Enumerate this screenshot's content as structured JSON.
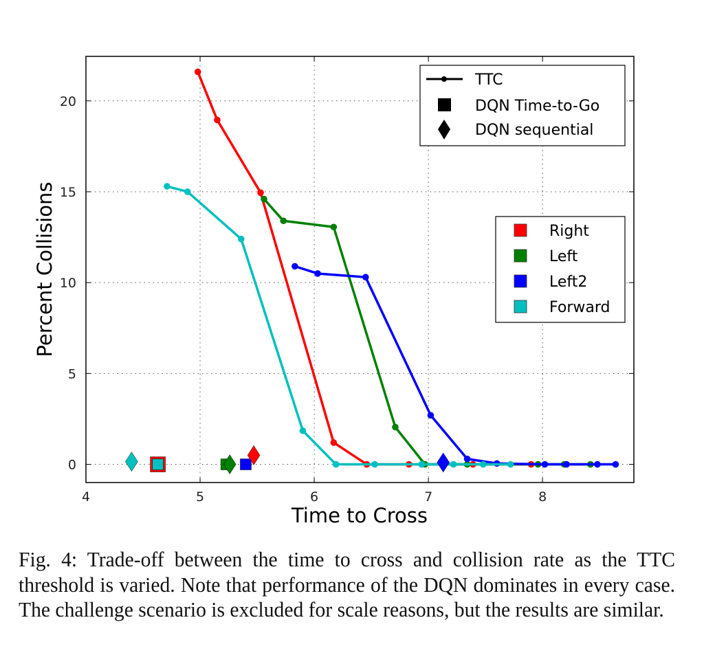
{
  "chart_data": {
    "type": "line",
    "title": "",
    "xlabel": "Time to Cross",
    "ylabel": "Percent Collisions",
    "xlim": [
      4,
      8.8
    ],
    "ylim": [
      -1,
      22.45
    ],
    "xticks": [
      4,
      5,
      6,
      7,
      8
    ],
    "yticks": [
      0,
      5,
      10,
      15,
      20
    ],
    "grid": true,
    "series": [
      {
        "name": "Right",
        "color": "#ff0000",
        "x": [
          4.98,
          5.15,
          5.53,
          6.17,
          6.46,
          6.83,
          7.39,
          7.9
        ],
        "y": [
          21.6,
          18.95,
          14.95,
          1.2,
          0,
          0,
          0,
          0
        ]
      },
      {
        "name": "Left",
        "color": "#008000",
        "x": [
          5.56,
          5.73,
          6.17,
          6.71,
          6.97,
          7.34,
          7.96,
          8.19,
          8.42
        ],
        "y": [
          14.6,
          13.4,
          13.06,
          2.05,
          0,
          0,
          0,
          0,
          0
        ]
      },
      {
        "name": "Left2",
        "color": "#0000ff",
        "x": [
          5.83,
          6.03,
          6.45,
          7.02,
          7.34,
          7.6,
          8.02,
          8.21,
          8.48,
          8.64
        ],
        "y": [
          10.9,
          10.5,
          10.3,
          2.7,
          0.3,
          0.05,
          0,
          0,
          0,
          0
        ]
      },
      {
        "name": "Forward",
        "color": "#00bfbf",
        "x": [
          4.71,
          4.89,
          5.36,
          5.9,
          6.19,
          6.53,
          6.94,
          7.22,
          7.48,
          7.72
        ],
        "y": [
          15.3,
          15.0,
          12.4,
          1.85,
          0,
          0,
          0,
          0,
          0,
          0
        ]
      }
    ],
    "dqn_time_to_go": [
      {
        "name": "Right",
        "color": "#ff0000",
        "x": 4.63,
        "y": 0,
        "size": "large"
      },
      {
        "name": "Forward",
        "color": "#00bfbf",
        "x": 4.63,
        "y": 0,
        "size": "normal"
      },
      {
        "name": "Left",
        "color": "#008000",
        "x": 5.23,
        "y": 0,
        "size": "normal"
      },
      {
        "name": "Left2",
        "color": "#0000ff",
        "x": 5.4,
        "y": 0,
        "size": "normal"
      }
    ],
    "dqn_sequential": [
      {
        "name": "Forward",
        "color": "#00bfbf",
        "x": 4.4,
        "y": 0.15
      },
      {
        "name": "Left",
        "color": "#008000",
        "x": 5.26,
        "y": 0
      },
      {
        "name": "Right",
        "color": "#ff0000",
        "x": 5.47,
        "y": 0.5
      },
      {
        "name": "Left2",
        "color": "#0000ff",
        "x": 7.13,
        "y": 0.1
      }
    ],
    "legend_markers": {
      "placement": "top-right",
      "items": [
        {
          "label": "TTC",
          "marker": "line-dot"
        },
        {
          "label": "DQN Time-to-Go",
          "marker": "square"
        },
        {
          "label": "DQN sequential",
          "marker": "diamond"
        }
      ]
    },
    "legend_scenarios": {
      "placement": "center-right",
      "items": [
        {
          "label": "Right",
          "color": "#ff0000"
        },
        {
          "label": "Left",
          "color": "#008000"
        },
        {
          "label": "Left2",
          "color": "#0000ff"
        },
        {
          "label": "Forward",
          "color": "#00bfbf"
        }
      ]
    }
  },
  "caption": {
    "text": "Fig. 4: Trade-off between the time to cross and collision rate as the TTC threshold is varied. Note that performance of the DQN dominates in every case. The challenge scenario is excluded for scale reasons, but the results are similar."
  }
}
